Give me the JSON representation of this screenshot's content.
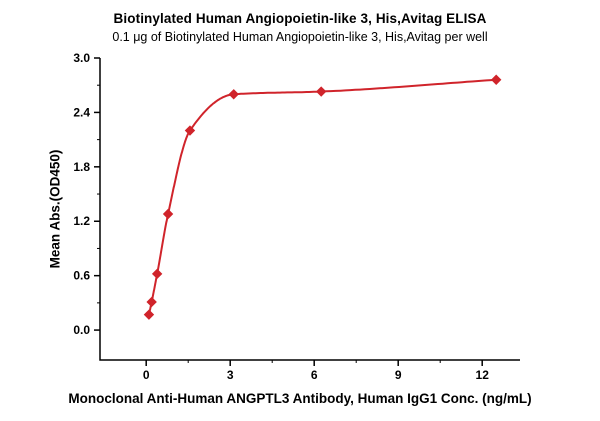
{
  "chart_data": {
    "type": "scatter",
    "title": "Biotinylated Human Angiopoietin-like 3, His,Avitag ELISA",
    "subtitle": "0.1 μg of Biotinylated Human Angiopoietin-like 3, His,Avitag per well",
    "xlabel": "Monoclonal Anti-Human ANGPTL3 Antibody, Human IgG1 Conc. (ng/mL)",
    "ylabel": "Mean Abs.(OD450)",
    "x": [
      0.098,
      0.195,
      0.391,
      0.781,
      1.563,
      3.125,
      6.25,
      12.5
    ],
    "y": [
      0.17,
      0.31,
      0.62,
      1.28,
      2.2,
      2.6,
      2.63,
      2.76
    ],
    "xlim": [
      -1.65,
      13.35
    ],
    "ylim": [
      -0.33,
      3.0
    ],
    "xticks": [
      0,
      3,
      6,
      9,
      12
    ],
    "xtick_labels": [
      "0",
      "3",
      "6",
      "9",
      "12"
    ],
    "yticks": [
      0.0,
      0.6,
      1.2,
      1.8,
      2.4,
      3.0
    ],
    "ytick_labels": [
      "0.0",
      "0.6",
      "1.2",
      "1.8",
      "2.4",
      "3.0"
    ],
    "line_color": "#d0242b",
    "marker": "diamond",
    "marker_color": "#d0242b",
    "axis_color": "#000000",
    "grid": false,
    "curve_fit": "4PL-like smooth curve through points"
  }
}
